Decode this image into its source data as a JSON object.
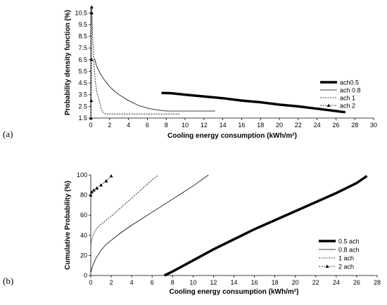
{
  "chart_data": [
    {
      "id": "a",
      "panel_label": "(a)",
      "type": "line",
      "xlabel": "Cooling energy consumption (kWh/m²)",
      "ylabel": "Probability density function (%)",
      "xlim": [
        0,
        30
      ],
      "ylim": [
        1.5,
        11
      ],
      "xticks": [
        "0",
        "2",
        "4",
        "6",
        "8",
        "10",
        "12",
        "14",
        "16",
        "18",
        "20",
        "22",
        "24",
        "26",
        "28",
        "30"
      ],
      "yticks": [
        "1.5",
        "2.5",
        "3.5",
        "4.5",
        "5.5",
        "6.5",
        "7.5",
        "8.5",
        "9.5",
        "10.5"
      ],
      "legend_position": "right",
      "series": [
        {
          "name": "ach0.5",
          "style": "thick",
          "x": [
            7.5,
            8.5,
            10,
            12,
            14,
            16,
            18,
            20,
            22,
            24,
            26,
            27
          ],
          "y": [
            3.65,
            3.63,
            3.5,
            3.35,
            3.2,
            3.0,
            2.85,
            2.65,
            2.5,
            2.3,
            2.1,
            2.0
          ]
        },
        {
          "name": "ach 0.8",
          "style": "thin",
          "x": [
            0.4,
            0.6,
            1.0,
            1.5,
            2,
            2.5,
            3,
            4,
            5,
            6,
            7,
            8,
            10,
            13.2
          ],
          "y": [
            6.6,
            6.0,
            5.3,
            4.7,
            4.2,
            3.8,
            3.5,
            3.0,
            2.6,
            2.35,
            2.2,
            2.1,
            2.1,
            2.1
          ]
        },
        {
          "name": "ach 1",
          "style": "dashed",
          "x": [
            0.1,
            0.2,
            0.35,
            0.5,
            0.7,
            0.9,
            1.1,
            1.3,
            1.6,
            2,
            4,
            6,
            8,
            9.4
          ],
          "y": [
            11.0,
            8.5,
            6.0,
            4.5,
            3.5,
            3.0,
            2.3,
            2.0,
            1.85,
            1.85,
            1.85,
            1.85,
            1.85,
            1.85
          ]
        },
        {
          "name": "ach 2",
          "style": "marker",
          "x": [
            0.02,
            0.05,
            0.08,
            0.1,
            0.1
          ],
          "y": [
            1.5,
            3.0,
            6.5,
            10.5,
            11.0
          ]
        }
      ]
    },
    {
      "id": "b",
      "panel_label": "(b)",
      "type": "line",
      "xlabel": "Cooling energy consumption (kWh/m²)",
      "ylabel": "Cumulative Probability (%)",
      "xlim": [
        0,
        28
      ],
      "ylim": [
        0,
        100
      ],
      "xticks": [
        "0",
        "2",
        "4",
        "6",
        "8",
        "10",
        "12",
        "14",
        "16",
        "18",
        "20",
        "22",
        "24",
        "26",
        "28"
      ],
      "yticks": [
        "0",
        "20",
        "40",
        "60",
        "80",
        "100"
      ],
      "legend_position": "bottom-right",
      "series": [
        {
          "name": "0.5 ach",
          "style": "thick",
          "x": [
            7.2,
            8,
            10,
            12,
            14,
            16,
            18,
            20,
            22,
            24,
            26,
            27
          ],
          "y": [
            0,
            4,
            15,
            26,
            36,
            46,
            55,
            64,
            73,
            82,
            92,
            99
          ]
        },
        {
          "name": "0.8 ach",
          "style": "thin",
          "x": [
            0,
            0.2,
            0.5,
            1,
            1.5,
            2,
            3,
            4,
            6,
            8,
            10,
            11.5
          ],
          "y": [
            3,
            10,
            17,
            25,
            31,
            35,
            43,
            50,
            63,
            76,
            89,
            100
          ]
        },
        {
          "name": "1 ach",
          "style": "dashed",
          "x": [
            0,
            0.1,
            0.3,
            0.6,
            1,
            2,
            3,
            4,
            5,
            6,
            6.6
          ],
          "y": [
            31,
            36,
            42,
            47,
            51,
            59,
            68,
            77,
            86,
            95,
            100
          ]
        },
        {
          "name": "2 ach",
          "style": "marker",
          "x": [
            0,
            0.1,
            0.3,
            0.6,
            1,
            1.5,
            2
          ],
          "y": [
            80,
            83,
            85,
            87,
            90,
            94,
            99
          ]
        }
      ]
    }
  ]
}
